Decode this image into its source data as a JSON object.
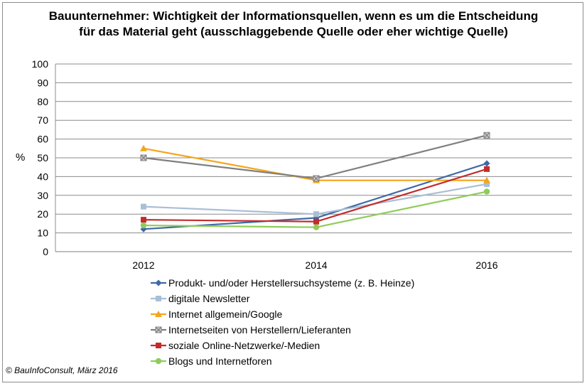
{
  "chart_data": {
    "type": "line",
    "title": "Bauunternehmer: Wichtigkeit der Informationsquellen, wenn es um die Entscheidung für das Material geht (ausschlaggebende Quelle oder eher wichtige Quelle)",
    "ylabel": "%",
    "xlabel": "",
    "categories": [
      "2012",
      "2014",
      "2016"
    ],
    "ylim": [
      0,
      100
    ],
    "yticks": [
      0,
      10,
      20,
      30,
      40,
      50,
      60,
      70,
      80,
      90,
      100
    ],
    "grid": true,
    "legend_position": "bottom",
    "series": [
      {
        "name": "Produkt- und/oder Herstellersuchsysteme (z. B. Heinze)",
        "values": [
          12,
          18,
          47
        ],
        "color": "#3e6aa5",
        "marker": "diamond"
      },
      {
        "name": "digitale Newsletter",
        "values": [
          24,
          20,
          36
        ],
        "color": "#a9bfd6",
        "marker": "square"
      },
      {
        "name": "Internet allgemein/Google",
        "values": [
          55,
          38,
          38
        ],
        "color": "#f4a51c",
        "marker": "triangle"
      },
      {
        "name": "Internetseiten von Herstellern/Lieferanten",
        "values": [
          50,
          39,
          62
        ],
        "color": "#7f7f7f",
        "marker": "x-square"
      },
      {
        "name": "soziale Online-Netzwerke/-Medien",
        "values": [
          17,
          16,
          44
        ],
        "color": "#c42c2c",
        "marker": "square"
      },
      {
        "name": "Blogs und Internetforen",
        "values": [
          14,
          13,
          32
        ],
        "color": "#8fcc5a",
        "marker": "circle"
      }
    ]
  },
  "copyright": "© BauInfoConsult, März 2016"
}
